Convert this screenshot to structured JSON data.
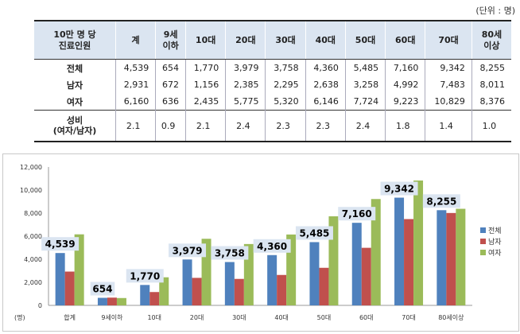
{
  "unit_label": "(단위 : 명)",
  "table": {
    "corner": "10만 명 당 진료인원",
    "headers": [
      "계",
      "9세 이하",
      "10대",
      "20대",
      "30대",
      "40대",
      "50대",
      "60대",
      "70대",
      "80세 이상"
    ],
    "rows": [
      {
        "label": "전체",
        "values": [
          "4,539",
          "654",
          "1,770",
          "3,979",
          "3,758",
          "4,360",
          "5,485",
          "7,160",
          "9,342",
          "8,255"
        ]
      },
      {
        "label": "남자",
        "values": [
          "2,931",
          "672",
          "1,156",
          "2,385",
          "2,295",
          "2,638",
          "3,258",
          "4,992",
          "7,483",
          "8,011"
        ]
      },
      {
        "label": "여자",
        "values": [
          "6,160",
          "636",
          "2,435",
          "5,775",
          "5,320",
          "6,146",
          "7,724",
          "9,223",
          "10,829",
          "8,376"
        ]
      }
    ],
    "ratio_row": {
      "label": "성비 (여자/남자)",
      "values": [
        "2.1",
        "0.9",
        "2.1",
        "2.4",
        "2.3",
        "2.3",
        "2.4",
        "1.8",
        "1.4",
        "1.0"
      ]
    }
  },
  "chart_data": {
    "type": "bar",
    "categories": [
      "합계",
      "9세이하",
      "10대",
      "20대",
      "30대",
      "40대",
      "50대",
      "60대",
      "70대",
      "80세이상"
    ],
    "series": [
      {
        "name": "전체",
        "color": "#4f81bd",
        "values": [
          4539,
          654,
          1770,
          3979,
          3758,
          4360,
          5485,
          7160,
          9342,
          8255
        ]
      },
      {
        "name": "남자",
        "color": "#c0504d",
        "values": [
          2931,
          672,
          1156,
          2385,
          2295,
          2638,
          3258,
          4992,
          7483,
          8011
        ]
      },
      {
        "name": "여자",
        "color": "#9bbb59",
        "values": [
          6160,
          636,
          2435,
          5775,
          5320,
          6146,
          7724,
          9223,
          10829,
          8376
        ]
      }
    ],
    "data_labels": [
      "4,539",
      "654",
      "1,770",
      "3,979",
      "3,758",
      "4,360",
      "5,485",
      "7,160",
      "9,342",
      "8,255"
    ],
    "ylim": [
      0,
      12000
    ],
    "yticks": [
      "0",
      "2,000",
      "4,000",
      "6,000",
      "8,000",
      "10,000",
      "12,000"
    ],
    "ylabel": "(명)",
    "label_box_color": "#dbe5f1",
    "legend_position": "right",
    "grid": false
  }
}
